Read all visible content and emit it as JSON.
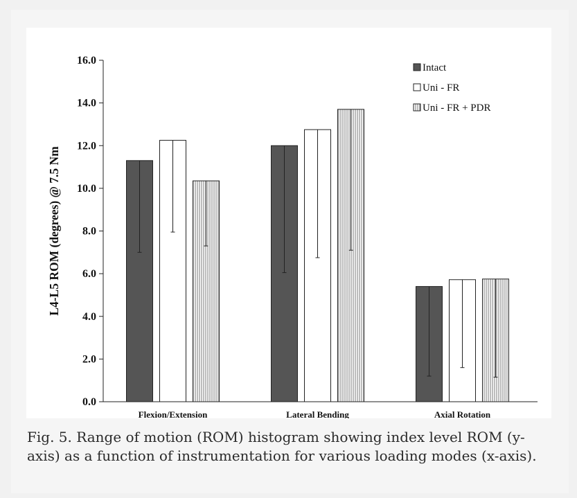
{
  "chart_data": {
    "type": "bar",
    "ylabel": "L4-L5 ROM (degrees) @ 7.5 Nm",
    "xlabel": "",
    "ylim": [
      0,
      16
    ],
    "yticks": [
      "0.0",
      "2.0",
      "4.0",
      "6.0",
      "8.0",
      "10.0",
      "12.0",
      "14.0",
      "16.0"
    ],
    "categories": [
      "Flexion/Extension",
      "Lateral Bending",
      "Axial Rotation"
    ],
    "legend_position": "top-right",
    "series": [
      {
        "name": "Intact",
        "values": [
          11.3,
          12.0,
          5.4
        ],
        "error_low": [
          7.0,
          6.05,
          1.2
        ],
        "fill": "#555555",
        "pattern": "solid"
      },
      {
        "name": "Uni - FR",
        "values": [
          12.25,
          12.75,
          5.72
        ],
        "error_low": [
          7.95,
          6.75,
          1.6
        ],
        "fill": "#ffffff",
        "pattern": "solid"
      },
      {
        "name": "Uni - FR + PDR",
        "values": [
          10.35,
          13.7,
          5.75
        ],
        "error_low": [
          7.3,
          7.1,
          1.15
        ],
        "fill": "#ffffff",
        "pattern": "vertical-lines"
      }
    ]
  },
  "caption": "Fig. 5. Range of motion (ROM) histogram showing index level ROM (y-axis) as a function of instrumentation for various loading modes (x-axis)."
}
